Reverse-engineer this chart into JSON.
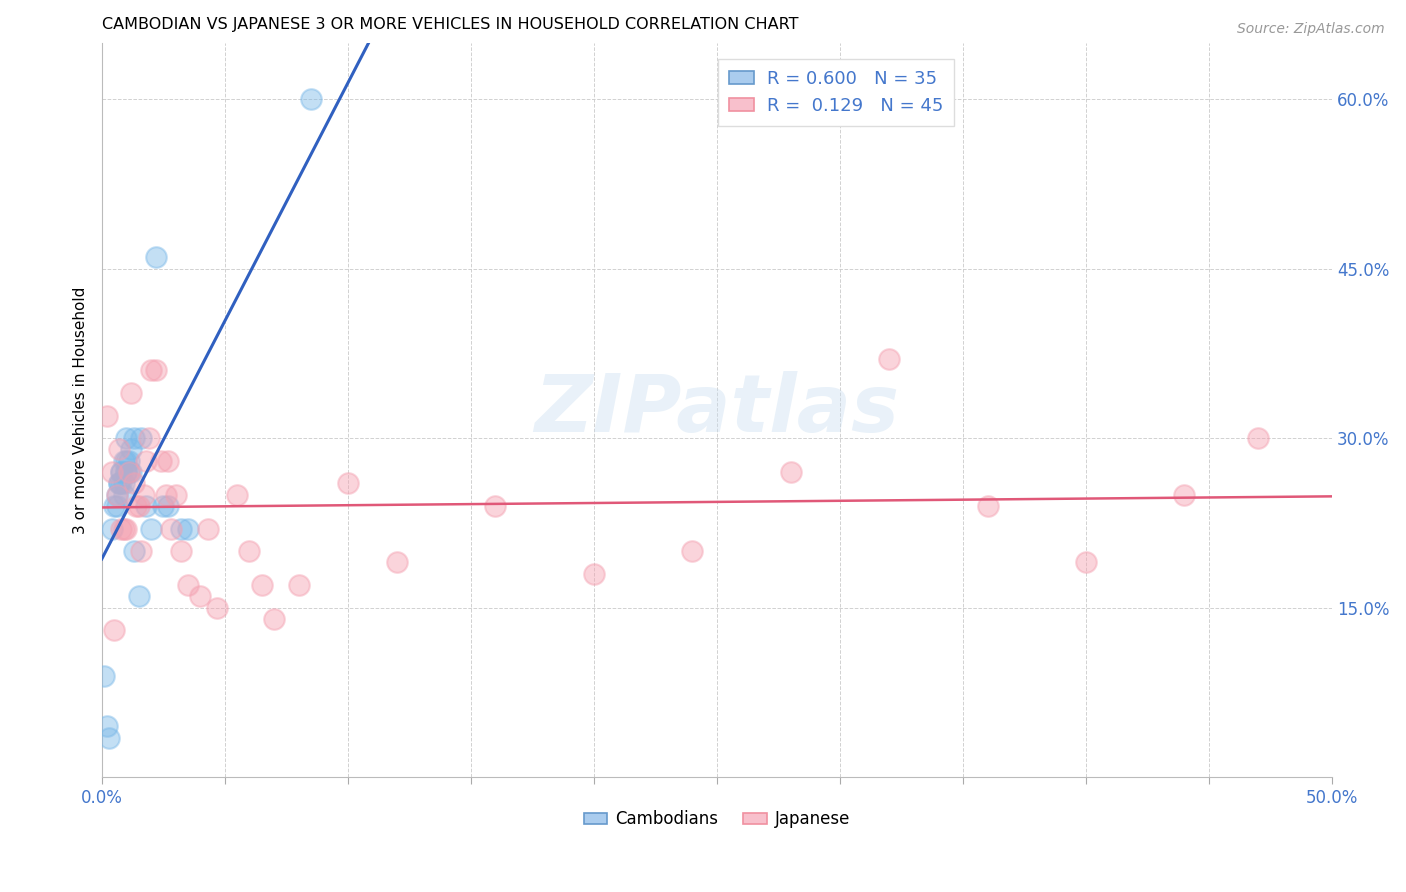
{
  "title": "CAMBODIAN VS JAPANESE 3 OR MORE VEHICLES IN HOUSEHOLD CORRELATION CHART",
  "source": "Source: ZipAtlas.com",
  "ylabel": "3 or more Vehicles in Household",
  "xlim": [
    0.0,
    0.5
  ],
  "ylim": [
    0.0,
    0.65
  ],
  "xticks": [
    0.0,
    0.05,
    0.1,
    0.15,
    0.2,
    0.25,
    0.3,
    0.35,
    0.4,
    0.45,
    0.5
  ],
  "yticks": [
    0.0,
    0.15,
    0.3,
    0.45,
    0.6
  ],
  "cambodian_R": 0.6,
  "cambodian_N": 35,
  "japanese_R": 0.129,
  "japanese_N": 45,
  "cambodian_color": "#7ab8e8",
  "japanese_color": "#f4a0b0",
  "trendline_cambodian_color": "#3060c0",
  "trendline_japanese_color": "#e05878",
  "watermark": "ZIPatlas",
  "cambodian_x": [
    0.001,
    0.002,
    0.003,
    0.004,
    0.005,
    0.006,
    0.006,
    0.007,
    0.007,
    0.008,
    0.008,
    0.008,
    0.009,
    0.009,
    0.009,
    0.01,
    0.01,
    0.01,
    0.01,
    0.011,
    0.011,
    0.012,
    0.012,
    0.013,
    0.013,
    0.015,
    0.016,
    0.018,
    0.02,
    0.022,
    0.025,
    0.027,
    0.032,
    0.035,
    0.085
  ],
  "cambodian_y": [
    0.09,
    0.045,
    0.035,
    0.22,
    0.24,
    0.24,
    0.25,
    0.26,
    0.26,
    0.27,
    0.26,
    0.27,
    0.28,
    0.25,
    0.26,
    0.27,
    0.28,
    0.27,
    0.3,
    0.27,
    0.28,
    0.27,
    0.29,
    0.3,
    0.2,
    0.16,
    0.3,
    0.24,
    0.22,
    0.46,
    0.24,
    0.24,
    0.22,
    0.22,
    0.6
  ],
  "japanese_x": [
    0.002,
    0.004,
    0.005,
    0.006,
    0.007,
    0.008,
    0.009,
    0.01,
    0.011,
    0.012,
    0.013,
    0.014,
    0.015,
    0.016,
    0.017,
    0.018,
    0.019,
    0.02,
    0.022,
    0.024,
    0.026,
    0.027,
    0.028,
    0.03,
    0.032,
    0.035,
    0.04,
    0.043,
    0.047,
    0.055,
    0.06,
    0.065,
    0.07,
    0.08,
    0.1,
    0.12,
    0.16,
    0.2,
    0.24,
    0.28,
    0.32,
    0.36,
    0.4,
    0.44,
    0.47
  ],
  "japanese_y": [
    0.32,
    0.27,
    0.13,
    0.25,
    0.29,
    0.22,
    0.22,
    0.22,
    0.27,
    0.34,
    0.26,
    0.24,
    0.24,
    0.2,
    0.25,
    0.28,
    0.3,
    0.36,
    0.36,
    0.28,
    0.25,
    0.28,
    0.22,
    0.25,
    0.2,
    0.17,
    0.16,
    0.22,
    0.15,
    0.25,
    0.2,
    0.17,
    0.14,
    0.17,
    0.26,
    0.19,
    0.24,
    0.18,
    0.2,
    0.27,
    0.37,
    0.24,
    0.19,
    0.25,
    0.3
  ]
}
